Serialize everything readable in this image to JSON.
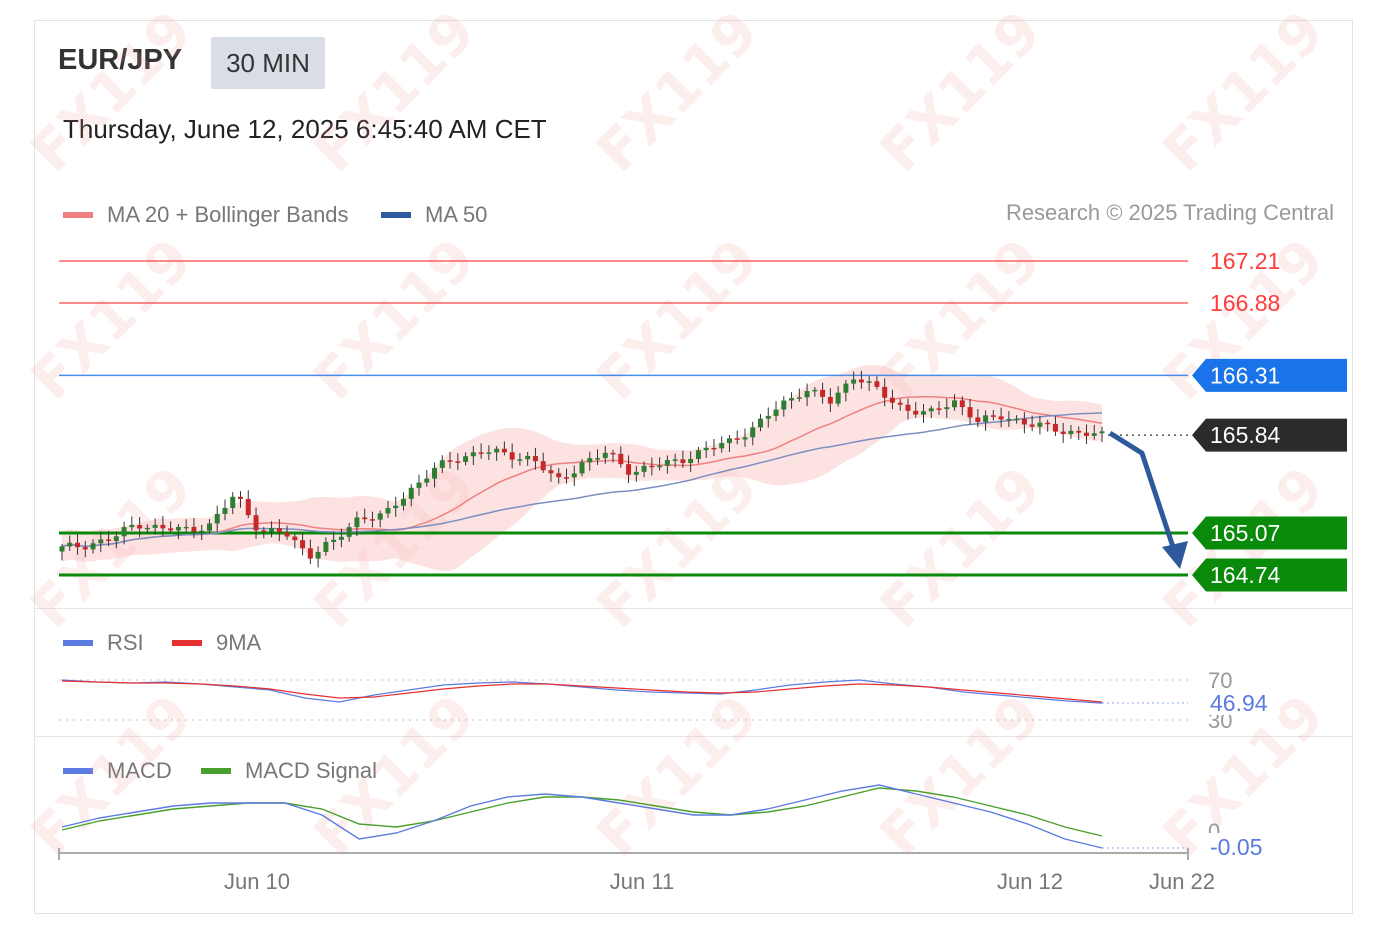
{
  "header": {
    "symbol": "EUR/JPY",
    "interval": "30 MIN",
    "datetime": "Thursday, June 12, 2025 6:45:40 AM CET",
    "credit": "Research © 2025 Trading Central"
  },
  "legends": {
    "main": [
      {
        "label": "MA 20 + Bollinger Bands",
        "color": "#f08080"
      },
      {
        "label": "MA 50",
        "color": "#2e5aa0"
      }
    ],
    "rsi": [
      {
        "label": "RSI",
        "color": "#5b7be0"
      },
      {
        "label": "9MA",
        "color": "#e53030"
      }
    ],
    "macd": [
      {
        "label": "MACD",
        "color": "#5b7be0"
      },
      {
        "label": "MACD Signal",
        "color": "#4aa02c"
      }
    ]
  },
  "chart_data": [
    {
      "type": "candlestick",
      "title": "EUR/JPY 30 MIN",
      "series": [
        {
          "name": "MA 20 + Bollinger Bands"
        },
        {
          "name": "MA 50"
        }
      ],
      "levels": [
        {
          "value": 167.21,
          "label": "167.21",
          "role": "resistance",
          "color": "#ff3b3b"
        },
        {
          "value": 166.88,
          "label": "166.88",
          "role": "resistance",
          "color": "#ff3b3b"
        },
        {
          "value": 166.31,
          "label": "166.31",
          "role": "pivot",
          "color": "#1a73e8"
        },
        {
          "value": 165.84,
          "label": "165.84",
          "role": "last-price",
          "color": "#2b2b2b"
        },
        {
          "value": 165.07,
          "label": "165.07",
          "role": "support",
          "color": "#0a8a0a"
        },
        {
          "value": 164.74,
          "label": "164.74",
          "role": "support",
          "color": "#0a8a0a"
        }
      ],
      "close_path": [
        164.95,
        164.98,
        165.02,
        165.15,
        165.1,
        165.1,
        165.13,
        165.38,
        165.08,
        165.07,
        164.9,
        165.0,
        165.2,
        165.2,
        165.4,
        165.57,
        165.66,
        165.72,
        165.68,
        165.66,
        165.47,
        165.62,
        165.7,
        165.55,
        165.6,
        165.65,
        165.72,
        165.8,
        165.9,
        166.08,
        166.2,
        166.1,
        166.31,
        166.18,
        166.05,
        166.0,
        166.12,
        165.94,
        166.0,
        165.92,
        165.9,
        165.85,
        165.84
      ],
      "projection": {
        "from": 165.84,
        "to": 164.74,
        "direction": "down"
      },
      "x_tick_labels": [
        "Jun 10",
        "Jun 11",
        "Jun 12",
        "Jun 22"
      ]
    },
    {
      "type": "line",
      "title": "RSI",
      "series": [
        {
          "name": "RSI",
          "values": [
            70,
            68,
            67,
            68,
            66,
            63,
            60,
            52,
            48,
            55,
            60,
            65,
            67,
            68,
            66,
            63,
            60,
            58,
            57,
            56,
            60,
            65,
            68,
            70,
            66,
            63,
            58,
            55,
            52,
            49,
            46.94
          ]
        },
        {
          "name": "9MA",
          "values": [
            69,
            68,
            67,
            67,
            66,
            64,
            61,
            56,
            52,
            53,
            57,
            61,
            64,
            66,
            66,
            64,
            62,
            60,
            58,
            57,
            58,
            61,
            64,
            66,
            65,
            63,
            60,
            57,
            54,
            51,
            48
          ]
        }
      ],
      "levels": [
        70,
        30
      ],
      "level_labels": [
        "70",
        "30"
      ],
      "last_value": "46.94"
    },
    {
      "type": "line",
      "title": "MACD",
      "series": [
        {
          "name": "MACD",
          "values": [
            0.02,
            0.05,
            0.07,
            0.09,
            0.1,
            0.1,
            0.1,
            0.06,
            -0.02,
            0.0,
            0.04,
            0.09,
            0.12,
            0.13,
            0.12,
            0.1,
            0.08,
            0.06,
            0.06,
            0.08,
            0.11,
            0.14,
            0.16,
            0.13,
            0.1,
            0.07,
            0.03,
            -0.02,
            -0.05
          ]
        },
        {
          "name": "MACD Signal",
          "values": [
            0.01,
            0.04,
            0.06,
            0.08,
            0.09,
            0.1,
            0.1,
            0.08,
            0.03,
            0.02,
            0.04,
            0.07,
            0.1,
            0.12,
            0.12,
            0.11,
            0.09,
            0.07,
            0.06,
            0.07,
            0.09,
            0.12,
            0.15,
            0.14,
            0.12,
            0.09,
            0.06,
            0.02,
            -0.01
          ]
        }
      ],
      "level_labels": [
        "0"
      ],
      "last_value": "-0.05"
    }
  ],
  "watermark": "FX119"
}
